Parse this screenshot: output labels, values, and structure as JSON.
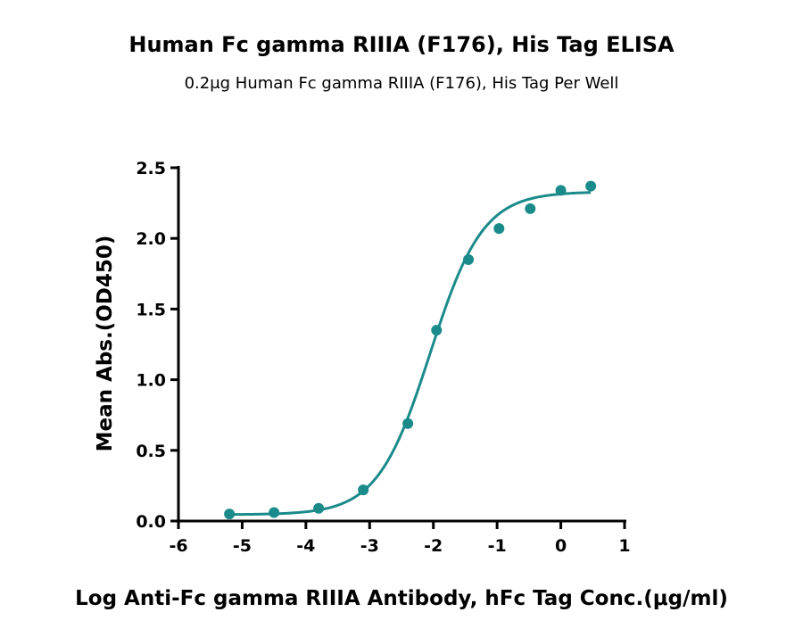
{
  "chart_data": {
    "type": "scatter",
    "title": "Human Fc gamma RIIIA (F176), His Tag ELISA",
    "subtitle": "0.2μg Human Fc gamma RIIIA (F176), His Tag Per Well",
    "xlabel": "Log Anti-Fc gamma RIIIA Antibody, hFc Tag Conc.(μg/ml)",
    "ylabel": "Mean Abs.(OD450)",
    "xlim": [
      -6,
      1
    ],
    "ylim": [
      0,
      2.5
    ],
    "x_ticks": [
      -6,
      -5,
      -4,
      -3,
      -2,
      -1,
      0,
      1
    ],
    "x_tick_labels": [
      "-6",
      "-5",
      "-4",
      "-3",
      "-2",
      "-1",
      "0",
      "1"
    ],
    "y_ticks": [
      0,
      0.5,
      1,
      1.5,
      2,
      2.5
    ],
    "y_tick_labels": [
      "0.0",
      "0.5",
      "1.0",
      "1.5",
      "2.0",
      "2.5"
    ],
    "grid": false,
    "colors": {
      "series": "#1b8a8a",
      "axis": "#000000"
    },
    "series": [
      {
        "x": [
          -5.2,
          -4.5,
          -3.8,
          -3.1,
          -2.4,
          -1.95,
          -1.45,
          -0.97,
          -0.48,
          0.0,
          0.47
        ],
        "y": [
          0.05,
          0.06,
          0.09,
          0.22,
          0.69,
          1.35,
          1.85,
          2.07,
          2.21,
          2.34,
          2.37
        ],
        "fit": {
          "model": "4PL",
          "bottom": 0.045,
          "top": 2.33,
          "logEC50": -2.05,
          "hill": 1.05
        }
      }
    ]
  }
}
